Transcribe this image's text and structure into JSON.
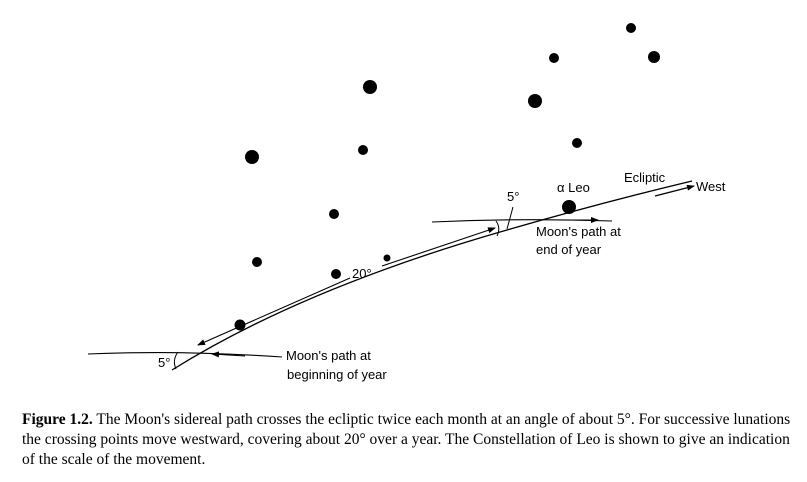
{
  "diagram": {
    "labels": {
      "alpha_leo": "α Leo",
      "ecliptic": "Ecliptic",
      "west": "West",
      "angle_right": "5°",
      "angle_left": "5°",
      "movement": "20°",
      "path_end_line1": "Moon's path at",
      "path_end_line2": "end of year",
      "path_begin_line1": "Moon's path at",
      "path_begin_line2": "beginning of year"
    }
  },
  "caption": {
    "figure_label": "Figure 1.2.",
    "text": " The Moon's sidereal path crosses the ecliptic twice each month at an angle of about 5°. For successive lunations the crossing points move westward, covering about 20° over a year. The Constellation of Leo is shown to give an indication of the scale of the movement."
  }
}
